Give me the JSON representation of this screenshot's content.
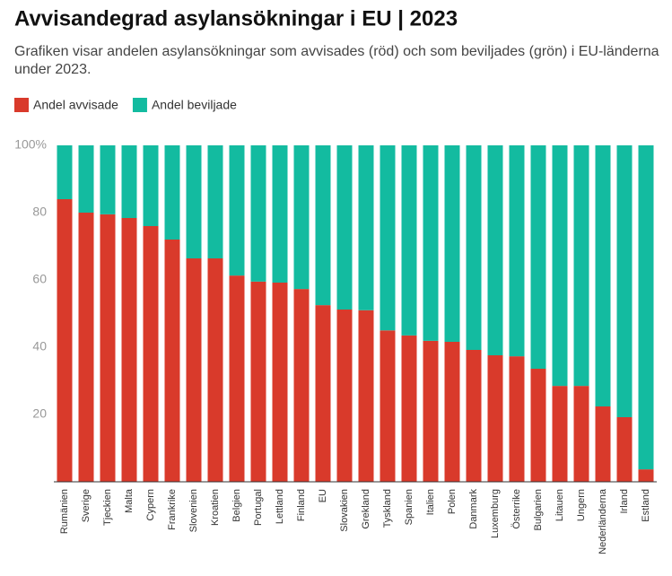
{
  "chart_data": {
    "type": "stacked_bar",
    "title": "Avvisandegrad asylansökningar i EU | 2023",
    "subtitle": "Grafiken visar andelen asylansökningar som avvisades (röd) och som beviljades (grön) i EU-länderna under 2023.",
    "categories": [
      "Rumänien",
      "Sverige",
      "Tjeckien",
      "Malta",
      "Cypern",
      "Frankrike",
      "Slovenien",
      "Kroatien",
      "Belgien",
      "Portugal",
      "Lettland",
      "Finland",
      "EU",
      "Slovakien",
      "Grekland",
      "Tyskland",
      "Spanien",
      "Italien",
      "Polen",
      "Danmark",
      "Luxemburg",
      "Österrike",
      "Bulgarien",
      "Litauen",
      "Ungern",
      "Nederländerna",
      "Irland",
      "Estland"
    ],
    "series": [
      {
        "name": "Andel avvisade",
        "color": "#d93a2b",
        "values": [
          84,
          80,
          79.5,
          78.4,
          76,
          72,
          66.4,
          66.4,
          61.3,
          59.5,
          59.2,
          57.3,
          52.5,
          51.2,
          51,
          45,
          43.5,
          41.9,
          41.6,
          39.2,
          37.6,
          37.3,
          33.6,
          28.5,
          28.5,
          22.4,
          19.2,
          3.7
        ]
      },
      {
        "name": "Andel beviljade",
        "color": "#13bba0",
        "values": [
          16,
          20,
          20.5,
          21.6,
          24,
          28,
          33.6,
          33.6,
          38.7,
          40.5,
          40.8,
          42.7,
          47.5,
          48.8,
          49,
          55,
          56.5,
          58.1,
          58.4,
          60.8,
          62.4,
          62.7,
          66.4,
          71.5,
          71.5,
          77.6,
          80.8,
          96.3
        ]
      }
    ],
    "ylim": [
      0,
      100
    ],
    "yticks": [
      20,
      40,
      60,
      80,
      {
        "value": 100,
        "label": "100%"
      }
    ]
  }
}
